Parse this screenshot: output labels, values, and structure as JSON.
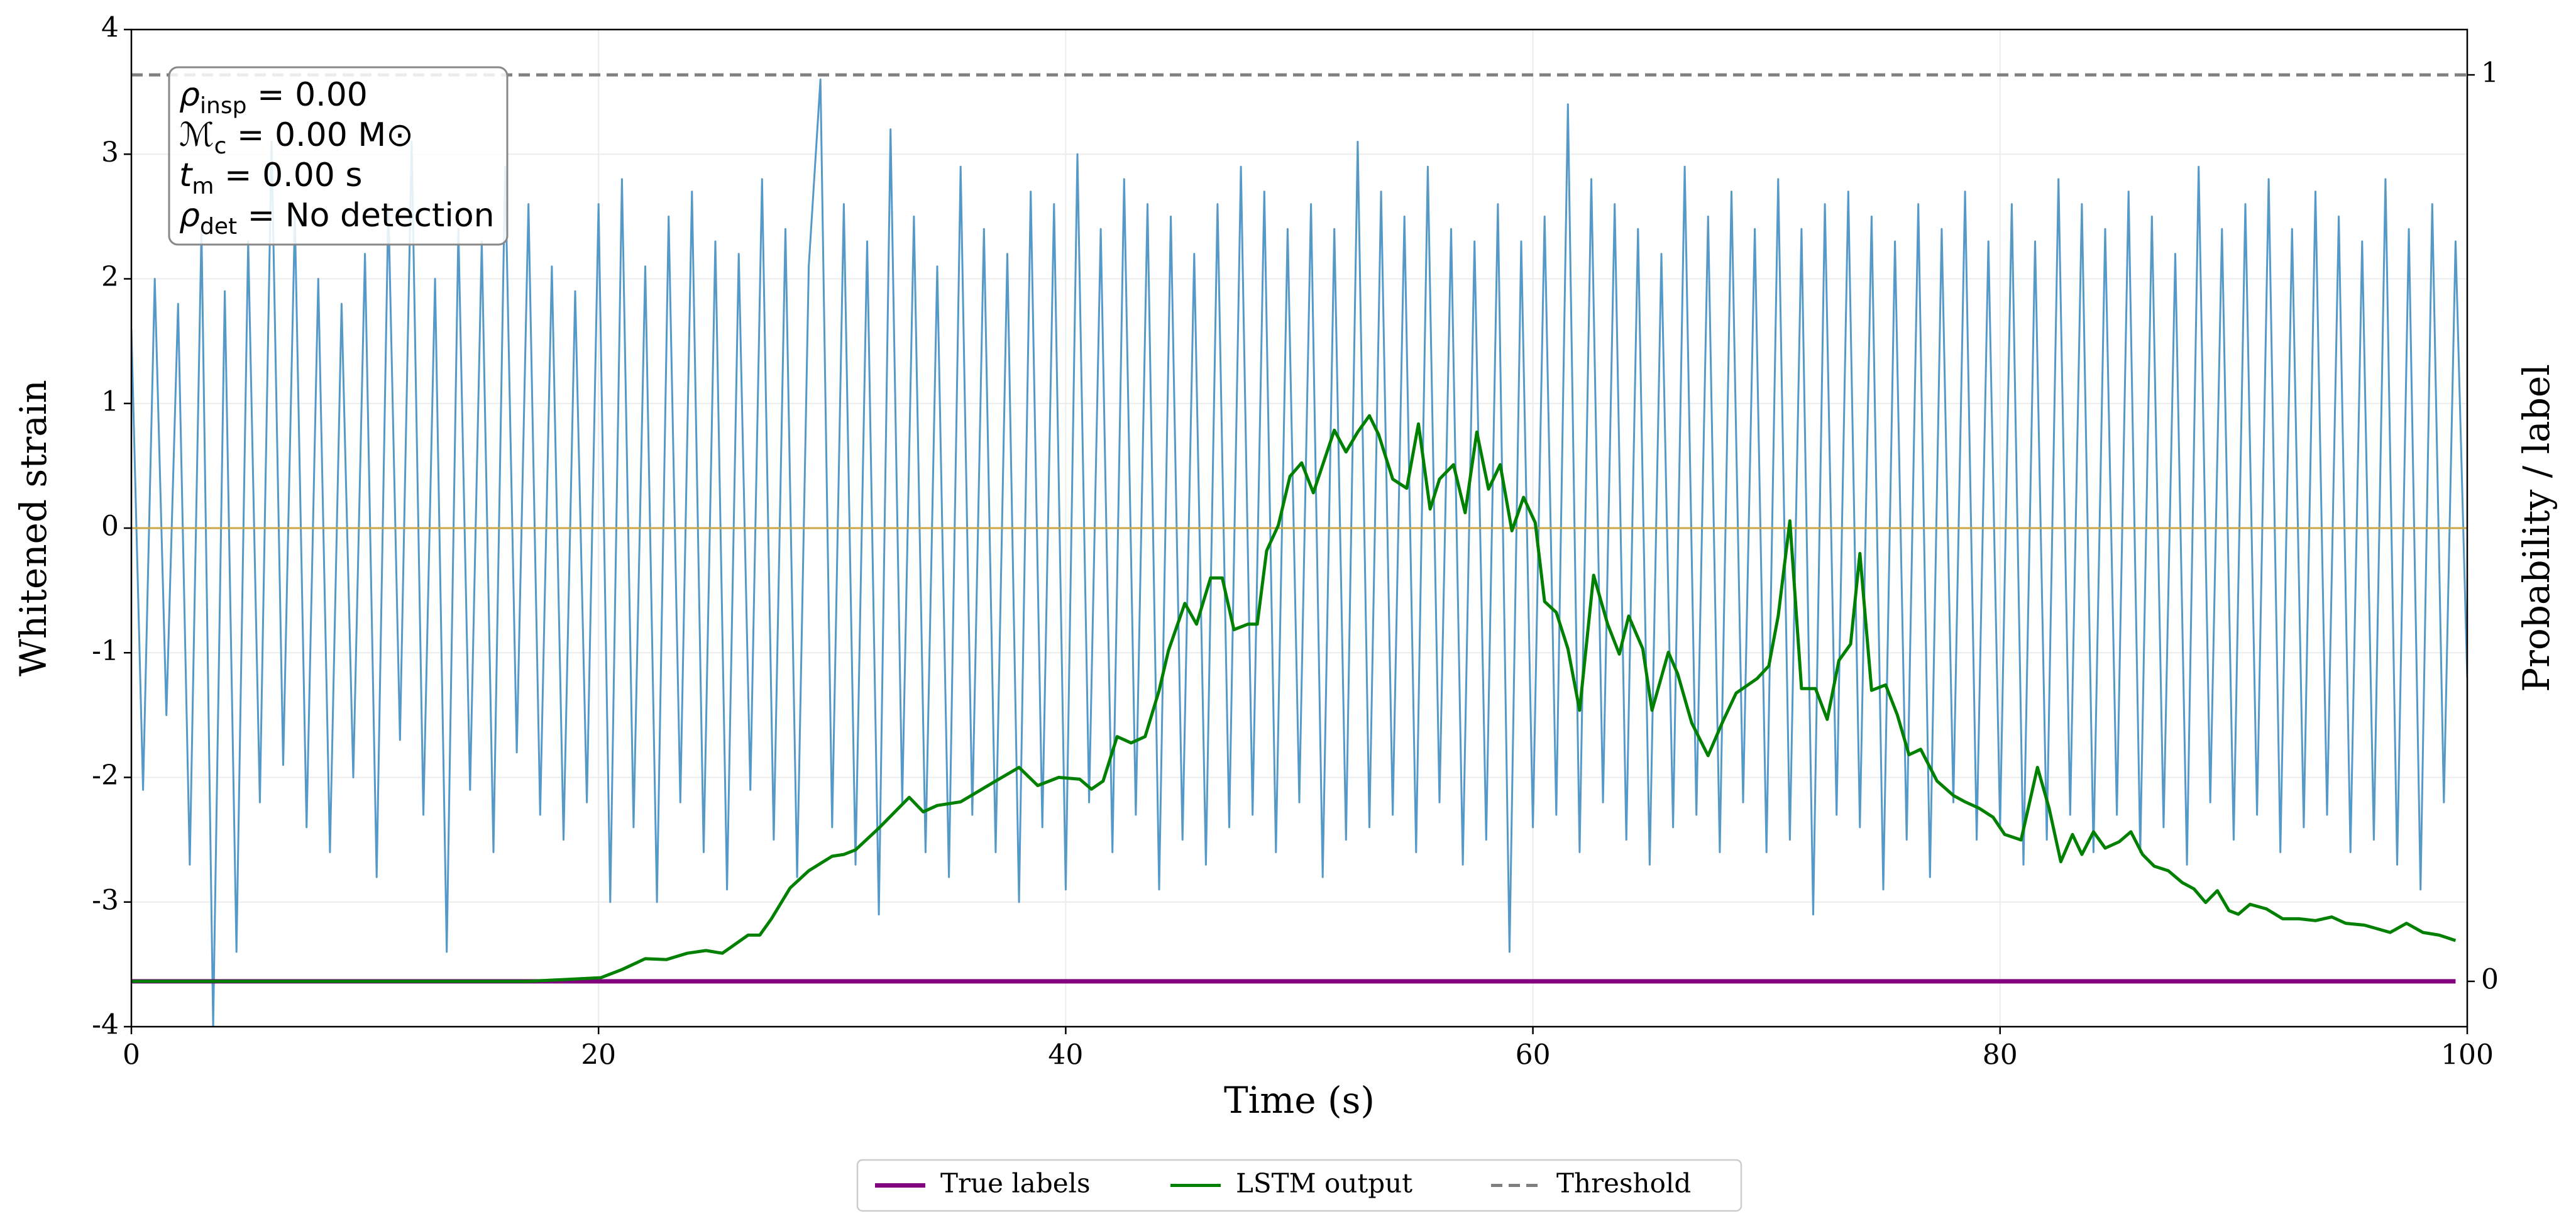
{
  "chart_data": {
    "type": "line",
    "xlabel": "Time (s)",
    "ylabel": "Whitened strain",
    "y2label": "Probability / label",
    "xlim": [
      0,
      100
    ],
    "xticks": [
      0,
      20,
      40,
      60,
      80,
      100
    ],
    "ylim": [
      -4,
      4
    ],
    "yticks": [
      -4,
      -3,
      -2,
      -1,
      0,
      1,
      2,
      3,
      4
    ],
    "y2lim": [
      -0.05,
      1.05
    ],
    "y2ticks": [
      0,
      1
    ],
    "grid": true,
    "legend": {
      "loc": "lower center"
    },
    "hline": {
      "value": 0,
      "color": "#c9a645"
    },
    "strain": {
      "color": "#5599c8",
      "x": [
        0,
        0.5,
        1,
        1.5,
        2,
        2.5,
        3,
        3.5,
        4,
        4.5,
        5,
        5.5,
        6,
        6.5,
        7,
        7.5,
        8,
        8.5,
        9,
        9.5,
        10,
        10.5,
        11,
        11.5,
        12,
        12.5,
        13,
        13.5,
        14,
        14.5,
        15,
        15.5,
        16,
        16.5,
        17,
        17.5,
        18,
        18.5,
        19,
        19.5,
        20,
        20.5,
        21,
        21.5,
        22,
        22.5,
        23,
        23.5,
        24,
        24.5,
        25,
        25.5,
        26,
        26.5,
        27,
        27.5,
        28,
        28.5,
        29,
        29.5,
        30,
        30.5,
        31,
        31.5,
        32,
        32.5,
        33,
        33.5,
        34,
        34.5,
        35,
        35.5,
        36,
        36.5,
        37,
        37.5,
        38,
        38.5,
        39,
        39.5,
        40,
        40.5,
        41,
        41.5,
        42,
        42.5,
        43,
        43.5,
        44,
        44.5,
        45,
        45.5,
        46,
        46.5,
        47,
        47.5,
        48,
        48.5,
        49,
        49.5,
        50,
        50.5,
        51,
        51.5,
        52,
        52.5,
        53,
        53.5,
        54,
        54.5,
        55,
        55.5,
        56,
        56.5,
        57,
        57.5,
        58,
        58.5,
        59,
        59.5,
        60,
        60.5,
        61,
        61.5,
        62,
        62.5,
        63,
        63.5,
        64,
        64.5,
        65,
        65.5,
        66,
        66.5,
        67,
        67.5,
        68,
        68.5,
        69,
        69.5,
        70,
        70.5,
        71,
        71.5,
        72,
        72.5,
        73,
        73.5,
        74,
        74.5,
        75,
        75.5,
        76,
        76.5,
        77,
        77.5,
        78,
        78.5,
        79,
        79.5,
        80,
        80.5,
        81,
        81.5,
        82,
        82.5,
        83,
        83.5,
        84,
        84.5,
        85,
        85.5,
        86,
        86.5,
        87,
        87.5,
        88,
        88.5,
        89,
        89.5,
        90,
        90.5,
        91,
        91.5,
        92,
        92.5,
        93,
        93.5,
        94,
        94.5,
        95,
        95.5,
        96,
        96.5,
        97,
        97.5,
        98,
        98.5,
        99,
        99.5,
        100
      ],
      "values": [
        1.6,
        -2.1,
        2.0,
        -1.5,
        1.8,
        -2.7,
        2.4,
        -4.0,
        1.9,
        -3.4,
        2.3,
        -2.2,
        3.1,
        -1.9,
        2.5,
        -2.4,
        2.0,
        -2.6,
        1.8,
        -2.0,
        2.2,
        -2.8,
        2.6,
        -1.7,
        3.1,
        -2.3,
        2.0,
        -3.4,
        2.4,
        -2.1,
        2.3,
        -2.6,
        2.9,
        -1.8,
        2.6,
        -2.3,
        2.1,
        -2.5,
        1.9,
        -2.2,
        2.6,
        -3.0,
        2.8,
        -2.4,
        2.1,
        -3.0,
        2.5,
        -2.2,
        2.7,
        -2.6,
        2.3,
        -2.9,
        2.2,
        -2.1,
        2.8,
        -2.5,
        2.4,
        -2.8,
        2.1,
        3.6,
        -2.4,
        2.6,
        -2.7,
        2.3,
        -3.1,
        3.2,
        -2.2,
        2.5,
        -2.6,
        2.1,
        -2.8,
        2.9,
        -2.3,
        2.4,
        -2.6,
        2.2,
        -3.0,
        2.7,
        -2.4,
        2.6,
        -2.9,
        3.0,
        -2.2,
        2.4,
        -2.6,
        2.8,
        -2.3,
        2.6,
        -2.9,
        2.5,
        -2.5,
        2.2,
        -2.7,
        2.6,
        -2.4,
        2.9,
        -2.3,
        2.7,
        -2.6,
        2.4,
        -2.2,
        2.6,
        -2.8,
        2.4,
        -2.5,
        3.1,
        -2.4,
        2.7,
        -2.3,
        2.5,
        -2.6,
        2.9,
        -2.2,
        2.4,
        -2.7,
        2.3,
        -2.5,
        2.6,
        -3.4,
        2.3,
        -2.4,
        2.5,
        -2.3,
        3.4,
        -2.6,
        2.8,
        -2.2,
        2.6,
        -2.5,
        2.4,
        -2.7,
        2.2,
        -2.4,
        2.9,
        -2.3,
        2.5,
        -2.6,
        2.7,
        -2.2,
        2.4,
        -2.6,
        2.8,
        -2.5,
        2.4,
        -3.1,
        2.6,
        -2.3,
        2.7,
        -2.4,
        2.5,
        -2.9,
        2.3,
        -2.5,
        2.6,
        -2.8,
        2.4,
        -2.2,
        2.7,
        -2.5,
        2.3,
        -2.4,
        2.6,
        -2.7,
        2.3,
        -2.5,
        2.8,
        -2.3,
        2.6,
        -2.6,
        2.4,
        -2.3,
        2.7,
        -2.6,
        2.5,
        -2.4,
        2.2,
        -2.7,
        2.9,
        -2.2,
        2.4,
        -2.5,
        2.6,
        -2.3,
        2.8,
        -2.6,
        2.4,
        -2.4,
        2.7,
        -2.3,
        2.5,
        -2.6,
        2.3,
        -2.5,
        2.8,
        -2.7,
        2.4,
        -2.9,
        2.6,
        -2.2,
        2.3,
        -1.2
      ]
    },
    "series": [
      {
        "name": "True labels",
        "color": "#800080",
        "axis": "y2",
        "dash": false,
        "x": [
          0,
          99.5
        ],
        "values": [
          0,
          0
        ]
      },
      {
        "name": "LSTM output",
        "color": "#008000",
        "axis": "y2",
        "dash": false,
        "x": [
          0,
          17,
          20.1,
          21,
          22,
          22.9,
          23.8,
          24.6,
          25.3,
          25.8,
          26.4,
          26.9,
          27.4,
          28.2,
          29,
          30,
          30.5,
          31,
          32,
          33.3,
          33.9,
          34.5,
          35.5,
          37,
          38,
          38.8,
          39.7,
          40.6,
          41.1,
          41.6,
          42.2,
          42.8,
          43.4,
          44,
          44.4,
          45.1,
          45.6,
          46.2,
          46.7,
          47.2,
          47.8,
          48.2,
          48.6,
          49.1,
          49.6,
          50.1,
          50.6,
          51.5,
          52,
          52.5,
          53,
          53.4,
          54,
          54.6,
          55.1,
          55.6,
          56,
          56.6,
          57.1,
          57.6,
          58.1,
          58.6,
          59.1,
          59.6,
          60.1,
          60.5,
          61,
          61.5,
          62,
          62.6,
          63.2,
          63.7,
          64.1,
          64.7,
          65.1,
          65.8,
          66.2,
          66.8,
          67.5,
          68.1,
          68.7,
          69.6,
          70.1,
          70.5,
          71,
          71.5,
          72.1,
          72.6,
          73.1,
          73.6,
          74,
          74.5,
          75.1,
          75.6,
          76.1,
          76.6,
          77.3,
          78,
          78.5,
          79.1,
          79.7,
          80.2,
          80.9,
          81.6,
          82.1,
          82.6,
          83.1,
          83.5,
          84,
          84.5,
          85.1,
          85.6,
          86.1,
          86.6,
          87.2,
          87.8,
          88.3,
          88.8,
          89.3,
          89.8,
          90.2,
          90.7,
          91.4,
          92.1,
          92.8,
          93.5,
          94.2,
          94.8,
          95.6,
          96.7,
          97.4,
          98.1,
          98.8,
          99.5
        ],
        "values": [
          0,
          0,
          0.004,
          0.013,
          0.025,
          0.024,
          0.031,
          0.034,
          0.031,
          0.04,
          0.051,
          0.051,
          0.069,
          0.103,
          0.122,
          0.138,
          0.14,
          0.145,
          0.169,
          0.203,
          0.187,
          0.194,
          0.198,
          0.221,
          0.236,
          0.216,
          0.225,
          0.223,
          0.212,
          0.221,
          0.27,
          0.263,
          0.27,
          0.321,
          0.365,
          0.417,
          0.394,
          0.445,
          0.445,
          0.388,
          0.394,
          0.394,
          0.475,
          0.503,
          0.557,
          0.572,
          0.539,
          0.608,
          0.584,
          0.606,
          0.624,
          0.603,
          0.554,
          0.544,
          0.615,
          0.521,
          0.554,
          0.57,
          0.517,
          0.606,
          0.543,
          0.57,
          0.497,
          0.534,
          0.506,
          0.419,
          0.407,
          0.367,
          0.299,
          0.448,
          0.394,
          0.361,
          0.403,
          0.367,
          0.299,
          0.363,
          0.339,
          0.285,
          0.249,
          0.285,
          0.318,
          0.334,
          0.348,
          0.403,
          0.508,
          0.323,
          0.323,
          0.289,
          0.354,
          0.372,
          0.472,
          0.321,
          0.327,
          0.294,
          0.25,
          0.256,
          0.221,
          0.205,
          0.198,
          0.191,
          0.181,
          0.162,
          0.156,
          0.236,
          0.191,
          0.132,
          0.162,
          0.14,
          0.165,
          0.147,
          0.154,
          0.165,
          0.14,
          0.127,
          0.122,
          0.109,
          0.102,
          0.087,
          0.1,
          0.078,
          0.074,
          0.085,
          0.08,
          0.069,
          0.069,
          0.067,
          0.071,
          0.064,
          0.062,
          0.054,
          0.064,
          0.054,
          0.051,
          0.045
        ]
      },
      {
        "name": "Threshold",
        "color": "#7f7f7f",
        "axis": "y2",
        "dash": true,
        "x": [
          0,
          100
        ],
        "values": [
          1,
          1
        ]
      }
    ],
    "annotation": [
      {
        "symbol": "ρ",
        "sub": "insp",
        "text": " = 0.00"
      },
      {
        "symbol": "ℳ",
        "sub": "c",
        "text": " = 0.00 M⊙"
      },
      {
        "symbol": "t",
        "sub": "m",
        "text": " = 0.00 s"
      },
      {
        "symbol": "ρ",
        "sub": "det",
        "text": " = No detection"
      }
    ]
  }
}
